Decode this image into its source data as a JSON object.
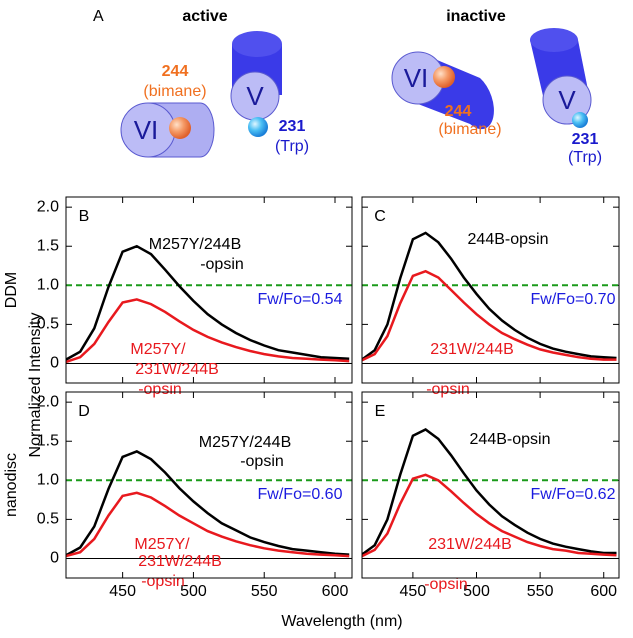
{
  "panel_a": {
    "label": "A",
    "active": {
      "title": "active",
      "helix_vi": "VI",
      "helix_v": "V",
      "site_244": "244",
      "site_244_label": "(bimane)",
      "site_231": "231",
      "site_231_label": "(Trp)"
    },
    "inactive": {
      "title": "inactive",
      "helix_vi": "VI",
      "helix_v": "V",
      "site_244": "244",
      "site_244_label": "(bimane)",
      "site_231": "231",
      "site_231_label": "(Trp)"
    }
  },
  "figure": {
    "ylabel": "Normalized Intensity",
    "xlabel": "Wavelength (nm)",
    "row_labels": [
      "DDM",
      "nanodisc"
    ]
  },
  "chart_data": [
    {
      "type": "line",
      "panel": "B",
      "x": [
        410,
        420,
        430,
        440,
        450,
        460,
        470,
        480,
        490,
        500,
        510,
        520,
        530,
        540,
        550,
        560,
        570,
        580,
        590,
        600,
        610
      ],
      "series": [
        {
          "name_lines": [
            "M257Y/244B",
            "-opsin"
          ],
          "color": "#000000",
          "values": [
            0.05,
            0.15,
            0.45,
            0.98,
            1.43,
            1.5,
            1.4,
            1.2,
            0.99,
            0.8,
            0.63,
            0.5,
            0.39,
            0.3,
            0.23,
            0.17,
            0.14,
            0.11,
            0.08,
            0.07,
            0.06
          ]
        },
        {
          "name_lines": [
            "M257Y/",
            "231W/244B",
            "-opsin"
          ],
          "color": "#e8191e",
          "values": [
            0.02,
            0.08,
            0.25,
            0.53,
            0.78,
            0.82,
            0.76,
            0.66,
            0.54,
            0.43,
            0.34,
            0.27,
            0.21,
            0.16,
            0.12,
            0.09,
            0.07,
            0.06,
            0.05,
            0.04,
            0.03
          ]
        }
      ],
      "hline": {
        "value": 1.0,
        "color": "#1a9a1a",
        "style": "dashed"
      },
      "baseline": 0,
      "annotation": "Fw/Fo=0.54",
      "annotation_color": "#1a1adf",
      "xlim": [
        410,
        612
      ],
      "ylim": [
        -0.25,
        2.13
      ],
      "xticks": [
        450,
        500,
        550,
        600
      ],
      "yticks": [
        0,
        0.5,
        {
          "value": 1,
          "label": "1.0"
        },
        1.5,
        {
          "value": 2,
          "label": "2.0"
        }
      ],
      "show_xtick_labels": false,
      "show_ytick_labels": true
    },
    {
      "type": "line",
      "panel": "C",
      "x": [
        410,
        420,
        430,
        440,
        450,
        460,
        470,
        480,
        490,
        500,
        510,
        520,
        530,
        540,
        550,
        560,
        570,
        580,
        590,
        600,
        610
      ],
      "series": [
        {
          "name_lines": [
            "244B-opsin"
          ],
          "color": "#000000",
          "values": [
            0.05,
            0.17,
            0.5,
            1.09,
            1.59,
            1.67,
            1.55,
            1.34,
            1.1,
            0.89,
            0.7,
            0.55,
            0.43,
            0.33,
            0.25,
            0.19,
            0.15,
            0.12,
            0.09,
            0.08,
            0.07
          ]
        },
        {
          "name_lines": [
            "231W/244B",
            "-opsin"
          ],
          "color": "#e8191e",
          "values": [
            0.04,
            0.12,
            0.35,
            0.77,
            1.12,
            1.18,
            1.1,
            0.94,
            0.78,
            0.63,
            0.5,
            0.39,
            0.31,
            0.24,
            0.18,
            0.14,
            0.11,
            0.08,
            0.06,
            0.05,
            0.05
          ]
        }
      ],
      "hline": {
        "value": 1.0,
        "color": "#1a9a1a",
        "style": "dashed"
      },
      "baseline": 0,
      "annotation": "Fw/Fo=0.70",
      "annotation_color": "#1a1adf",
      "xlim": [
        410,
        612
      ],
      "ylim": [
        -0.25,
        2.13
      ],
      "xticks": [
        450,
        500,
        550,
        600
      ],
      "yticks": [
        0,
        0.5,
        {
          "value": 1,
          "label": "1.0"
        },
        1.5,
        {
          "value": 2,
          "label": "2.0"
        }
      ],
      "show_xtick_labels": false,
      "show_ytick_labels": false
    },
    {
      "type": "line",
      "panel": "D",
      "x": [
        410,
        420,
        430,
        440,
        450,
        460,
        470,
        480,
        490,
        500,
        510,
        520,
        530,
        540,
        550,
        560,
        570,
        580,
        590,
        600,
        610
      ],
      "series": [
        {
          "name_lines": [
            "M257Y/244B",
            "-opsin"
          ],
          "color": "#000000",
          "values": [
            0.04,
            0.14,
            0.41,
            0.89,
            1.3,
            1.37,
            1.27,
            1.1,
            0.9,
            0.73,
            0.58,
            0.45,
            0.36,
            0.27,
            0.21,
            0.16,
            0.12,
            0.1,
            0.08,
            0.06,
            0.05
          ]
        },
        {
          "name_lines": [
            "M257Y/",
            "231W/244B",
            "-opsin"
          ],
          "color": "#e8191e",
          "values": [
            0.03,
            0.08,
            0.25,
            0.55,
            0.8,
            0.84,
            0.78,
            0.67,
            0.55,
            0.45,
            0.35,
            0.28,
            0.22,
            0.17,
            0.13,
            0.1,
            0.08,
            0.06,
            0.05,
            0.04,
            0.03
          ]
        }
      ],
      "hline": {
        "value": 1.0,
        "color": "#1a9a1a",
        "style": "dashed"
      },
      "baseline": 0,
      "annotation": "Fw/Fo=0.60",
      "annotation_color": "#1a1adf",
      "xlim": [
        410,
        612
      ],
      "ylim": [
        -0.25,
        2.13
      ],
      "xticks": [
        450,
        500,
        550,
        600
      ],
      "yticks": [
        0,
        0.5,
        {
          "value": 1,
          "label": "1.0"
        },
        1.5,
        {
          "value": 2,
          "label": "2.0"
        }
      ],
      "show_xtick_labels": true,
      "show_ytick_labels": true
    },
    {
      "type": "line",
      "panel": "E",
      "x": [
        410,
        420,
        430,
        440,
        450,
        460,
        470,
        480,
        490,
        500,
        510,
        520,
        530,
        540,
        550,
        560,
        570,
        580,
        590,
        600,
        610
      ],
      "series": [
        {
          "name_lines": [
            "244B-opsin"
          ],
          "color": "#000000",
          "values": [
            0.05,
            0.17,
            0.5,
            1.07,
            1.57,
            1.65,
            1.53,
            1.32,
            1.09,
            0.87,
            0.69,
            0.54,
            0.43,
            0.33,
            0.25,
            0.19,
            0.15,
            0.12,
            0.09,
            0.07,
            0.07
          ]
        },
        {
          "name_lines": [
            "231W/244B",
            "-opsin"
          ],
          "color": "#e8191e",
          "values": [
            0.03,
            0.11,
            0.32,
            0.7,
            1.02,
            1.07,
            1.0,
            0.86,
            0.71,
            0.57,
            0.45,
            0.35,
            0.28,
            0.21,
            0.16,
            0.12,
            0.1,
            0.07,
            0.06,
            0.05,
            0.04
          ]
        }
      ],
      "hline": {
        "value": 1.0,
        "color": "#1a9a1a",
        "style": "dashed"
      },
      "baseline": 0,
      "annotation": "Fw/Fo=0.62",
      "annotation_color": "#1a1adf",
      "xlim": [
        410,
        612
      ],
      "ylim": [
        -0.25,
        2.13
      ],
      "xticks": [
        450,
        500,
        550,
        600
      ],
      "yticks": [
        0,
        0.5,
        {
          "value": 1,
          "label": "1.0"
        },
        1.5,
        {
          "value": 2,
          "label": "2.0"
        }
      ],
      "show_xtick_labels": true,
      "show_ytick_labels": false
    }
  ]
}
